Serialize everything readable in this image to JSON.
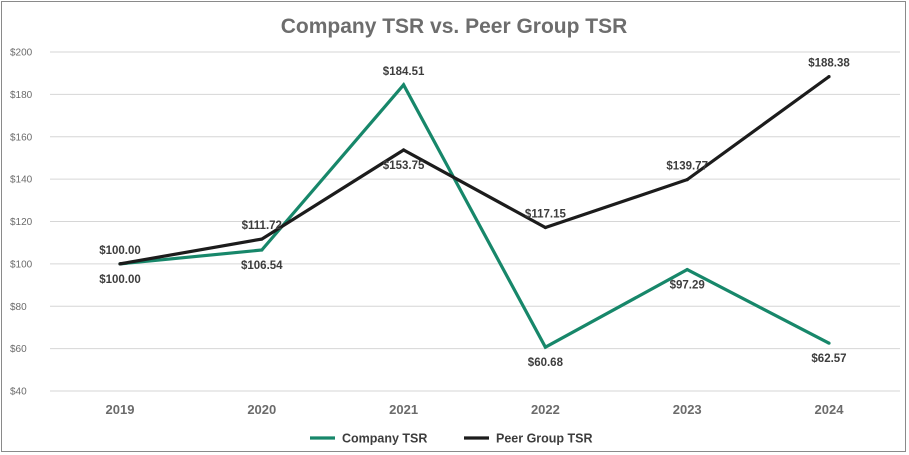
{
  "chart_data": {
    "type": "line",
    "title": "Company TSR vs. Peer Group TSR",
    "xlabel": "",
    "ylabel": "",
    "categories": [
      "2019",
      "2020",
      "2021",
      "2022",
      "2023",
      "2024"
    ],
    "ylim": [
      40,
      200
    ],
    "yticks": [
      40,
      60,
      80,
      100,
      120,
      140,
      160,
      180,
      200
    ],
    "ytick_labels": [
      "$40",
      "$60",
      "$80",
      "$100",
      "$120",
      "$140",
      "$160",
      "$180",
      "$200"
    ],
    "grid": true,
    "legend_position": "bottom-center",
    "series": [
      {
        "name": "Company TSR",
        "color": "#17876a",
        "values": [
          100.0,
          106.54,
          184.51,
          60.68,
          97.29,
          62.57
        ],
        "labels": [
          "$100.00",
          "$106.54",
          "$184.51",
          "$60.68",
          "$97.29",
          "$62.57"
        ],
        "label_side": [
          "below",
          "below",
          "above",
          "below",
          "below",
          "below"
        ]
      },
      {
        "name": "Peer Group TSR",
        "color": "#1c1c1c",
        "values": [
          100.0,
          111.72,
          153.75,
          117.15,
          139.77,
          188.38
        ],
        "labels": [
          "$100.00",
          "$111.72",
          "$153.75",
          "$117.15",
          "$139.77",
          "$188.38"
        ],
        "label_side": [
          "above",
          "above",
          "below",
          "above",
          "above",
          "above"
        ]
      }
    ]
  }
}
